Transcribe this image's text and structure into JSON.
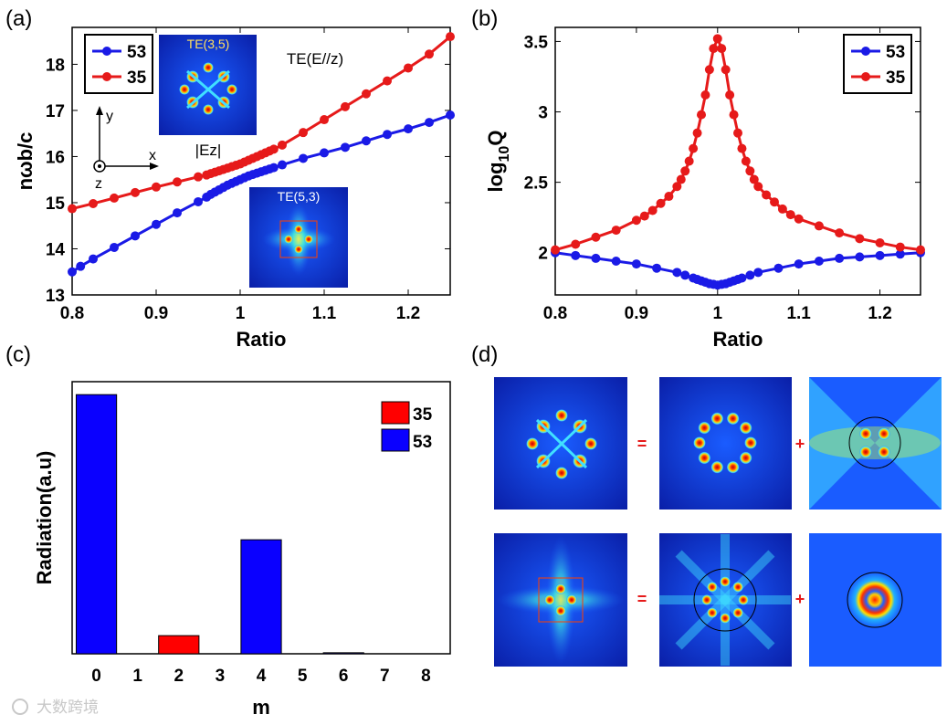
{
  "panels": {
    "a": "(a)",
    "b": "(b)",
    "c": "(c)",
    "d": "(d)"
  },
  "watermark": "大数跨境",
  "colors": {
    "s53": "#1a1ae6",
    "s35": "#e61a1a",
    "bar53": "#0a00ff",
    "bar35": "#ff0000"
  },
  "chart_data": [
    {
      "id": "a",
      "type": "line",
      "xlabel": "Ratio",
      "ylabel": "nωb/c",
      "xlim": [
        0.8,
        1.25
      ],
      "ylim": [
        13,
        18.8
      ],
      "xticks": [
        "0.8",
        "0.9",
        "1",
        "1.1",
        "1.2"
      ],
      "yticks": [
        "13",
        "14",
        "15",
        "16",
        "17",
        "18"
      ],
      "legend": [
        "53",
        "35"
      ],
      "annotations": {
        "mode": "TE(E//z)",
        "inset1": "TE(3,5)",
        "inset2": "TE(5,3)",
        "field": "|Ez|",
        "ax_x": "x",
        "ax_y": "y",
        "ax_z": "z"
      },
      "series": [
        {
          "name": "53",
          "x": [
            0.8,
            0.81,
            0.825,
            0.85,
            0.875,
            0.9,
            0.925,
            0.95,
            0.96,
            0.965,
            0.97,
            0.975,
            0.98,
            0.985,
            0.99,
            0.995,
            1.0,
            1.005,
            1.01,
            1.015,
            1.02,
            1.025,
            1.03,
            1.035,
            1.04,
            1.05,
            1.075,
            1.1,
            1.125,
            1.15,
            1.175,
            1.2,
            1.225,
            1.25
          ],
          "y": [
            13.5,
            13.62,
            13.78,
            14.03,
            14.28,
            14.53,
            14.78,
            15.02,
            15.12,
            15.18,
            15.23,
            15.28,
            15.33,
            15.38,
            15.42,
            15.46,
            15.5,
            15.54,
            15.58,
            15.61,
            15.64,
            15.67,
            15.7,
            15.73,
            15.76,
            15.82,
            15.96,
            16.08,
            16.2,
            16.34,
            16.48,
            16.6,
            16.74,
            16.9
          ]
        },
        {
          "name": "35",
          "x": [
            0.8,
            0.825,
            0.85,
            0.875,
            0.9,
            0.925,
            0.95,
            0.96,
            0.965,
            0.97,
            0.975,
            0.98,
            0.985,
            0.99,
            0.995,
            1.0,
            1.005,
            1.01,
            1.015,
            1.02,
            1.025,
            1.03,
            1.035,
            1.04,
            1.05,
            1.075,
            1.1,
            1.125,
            1.15,
            1.175,
            1.2,
            1.225,
            1.25
          ],
          "y": [
            14.87,
            14.98,
            15.1,
            15.22,
            15.34,
            15.45,
            15.56,
            15.6,
            15.63,
            15.66,
            15.69,
            15.72,
            15.75,
            15.78,
            15.81,
            15.84,
            15.88,
            15.92,
            15.96,
            16.0,
            16.04,
            16.08,
            16.12,
            16.16,
            16.25,
            16.52,
            16.8,
            17.08,
            17.36,
            17.64,
            17.92,
            18.22,
            18.6
          ]
        }
      ]
    },
    {
      "id": "b",
      "type": "line",
      "xlabel": "Ratio",
      "ylabel": "log10Q",
      "xlim": [
        0.8,
        1.25
      ],
      "ylim": [
        1.7,
        3.6
      ],
      "xticks": [
        "0.8",
        "0.9",
        "1",
        "1.1",
        "1.2"
      ],
      "yticks": [
        "2",
        "2.5",
        "3",
        "3.5"
      ],
      "legend": [
        "53",
        "35"
      ],
      "series": [
        {
          "name": "53",
          "x": [
            0.8,
            0.825,
            0.85,
            0.875,
            0.9,
            0.925,
            0.95,
            0.96,
            0.97,
            0.975,
            0.98,
            0.985,
            0.99,
            0.995,
            1.0,
            1.005,
            1.01,
            1.015,
            1.02,
            1.025,
            1.03,
            1.04,
            1.05,
            1.075,
            1.1,
            1.125,
            1.15,
            1.175,
            1.2,
            1.225,
            1.25
          ],
          "y": [
            2.0,
            1.98,
            1.96,
            1.94,
            1.92,
            1.89,
            1.86,
            1.84,
            1.82,
            1.81,
            1.8,
            1.79,
            1.78,
            1.775,
            1.77,
            1.775,
            1.78,
            1.79,
            1.8,
            1.81,
            1.82,
            1.84,
            1.86,
            1.89,
            1.92,
            1.94,
            1.96,
            1.97,
            1.98,
            1.99,
            2.0
          ]
        },
        {
          "name": "35",
          "x": [
            0.8,
            0.825,
            0.85,
            0.875,
            0.9,
            0.91,
            0.92,
            0.93,
            0.94,
            0.95,
            0.955,
            0.96,
            0.965,
            0.97,
            0.975,
            0.98,
            0.985,
            0.99,
            0.995,
            1.0,
            1.005,
            1.01,
            1.015,
            1.02,
            1.025,
            1.03,
            1.035,
            1.04,
            1.045,
            1.05,
            1.06,
            1.07,
            1.08,
            1.09,
            1.1,
            1.125,
            1.15,
            1.175,
            1.2,
            1.225,
            1.25
          ],
          "y": [
            2.02,
            2.06,
            2.11,
            2.16,
            2.23,
            2.26,
            2.3,
            2.35,
            2.4,
            2.47,
            2.52,
            2.58,
            2.65,
            2.74,
            2.85,
            2.98,
            3.12,
            3.3,
            3.45,
            3.52,
            3.45,
            3.3,
            3.12,
            2.98,
            2.85,
            2.74,
            2.65,
            2.58,
            2.52,
            2.47,
            2.41,
            2.36,
            2.31,
            2.27,
            2.24,
            2.19,
            2.14,
            2.1,
            2.07,
            2.04,
            2.02
          ]
        }
      ]
    },
    {
      "id": "c",
      "type": "bar",
      "xlabel": "m",
      "ylabel": "Radiation(a.u)",
      "categories": [
        "0",
        "1",
        "2",
        "3",
        "4",
        "5",
        "6",
        "7",
        "8"
      ],
      "ylim": [
        0,
        1.05
      ],
      "legend": [
        "35",
        "53"
      ],
      "bars": [
        {
          "m": 0,
          "value": 1.0,
          "series": "53"
        },
        {
          "m": 2,
          "value": 0.07,
          "series": "35"
        },
        {
          "m": 4,
          "value": 0.44,
          "series": "53"
        },
        {
          "m": 6,
          "value": 0.004,
          "series": "53"
        }
      ]
    }
  ],
  "panel_d": {
    "eq": "=",
    "plus": "+"
  }
}
